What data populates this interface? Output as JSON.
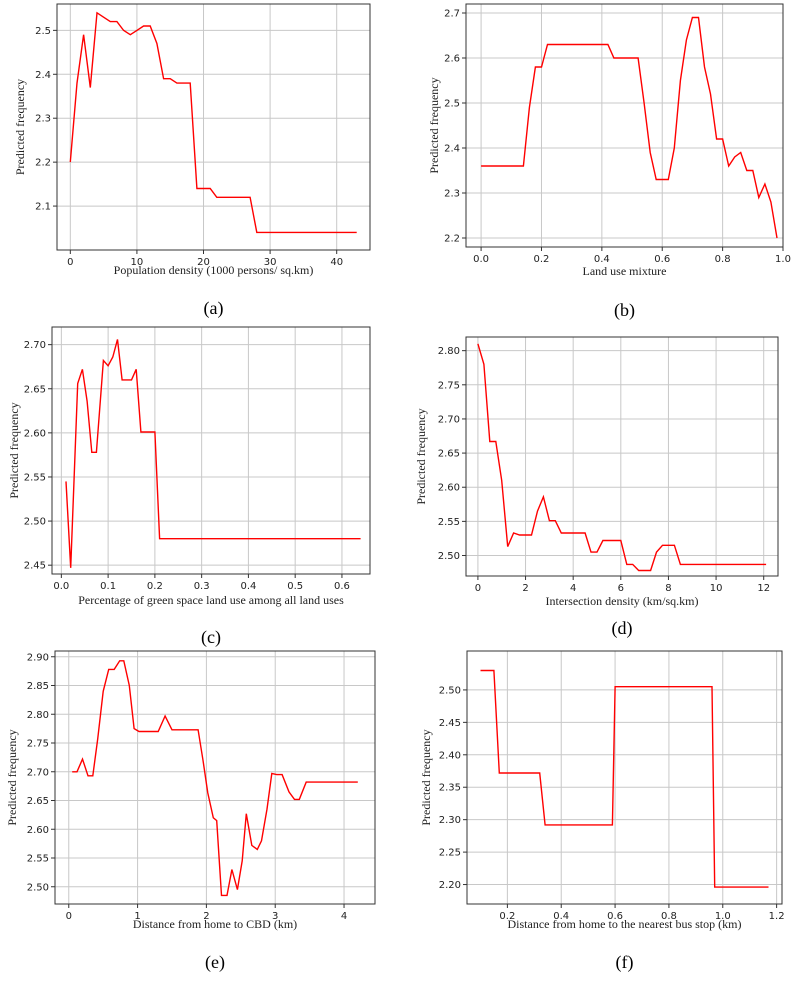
{
  "chart_data": [
    {
      "id": "a",
      "type": "line",
      "panel_label": "(a)",
      "xlabel": "Population density (1000 persons/ sq.km)",
      "ylabel": "Predicted frequency",
      "xlim": [
        -2,
        45
      ],
      "ylim": [
        2.0,
        2.56
      ],
      "xticks": [
        0,
        10,
        20,
        30,
        40
      ],
      "xtick_labels": [
        "0",
        "10",
        "20",
        "30",
        "40"
      ],
      "yticks": [
        2.1,
        2.2,
        2.3,
        2.4,
        2.5
      ],
      "ytick_labels": [
        "2.1",
        "2.2",
        "2.3",
        "2.4",
        "2.5"
      ],
      "x": [
        0,
        1,
        2,
        3,
        4,
        5,
        6,
        7,
        8,
        9,
        10,
        11,
        12,
        13,
        14,
        15,
        16,
        17,
        18,
        19,
        20,
        21,
        22,
        23,
        24,
        25,
        26,
        27,
        28,
        43
      ],
      "y": [
        2.2,
        2.38,
        2.49,
        2.37,
        2.54,
        2.53,
        2.52,
        2.52,
        2.5,
        2.49,
        2.5,
        2.51,
        2.51,
        2.47,
        2.39,
        2.39,
        2.38,
        2.38,
        2.38,
        2.14,
        2.14,
        2.14,
        2.12,
        2.12,
        2.12,
        2.12,
        2.12,
        2.12,
        2.04,
        2.04
      ]
    },
    {
      "id": "b",
      "type": "line",
      "panel_label": "(b)",
      "xlabel": "Land use mixture",
      "ylabel": "Predicted frequency",
      "xlim": [
        -0.05,
        1.0
      ],
      "ylim": [
        2.18,
        2.72
      ],
      "xticks": [
        0.0,
        0.2,
        0.4,
        0.6,
        0.8,
        1.0
      ],
      "xtick_labels": [
        "0.0",
        "0.2",
        "0.4",
        "0.6",
        "0.8",
        "1.0"
      ],
      "yticks": [
        2.2,
        2.3,
        2.4,
        2.5,
        2.6,
        2.7
      ],
      "ytick_labels": [
        "2.2",
        "2.3",
        "2.4",
        "2.5",
        "2.6",
        "2.7"
      ],
      "x": [
        0.0,
        0.14,
        0.16,
        0.18,
        0.2,
        0.22,
        0.42,
        0.44,
        0.52,
        0.54,
        0.56,
        0.58,
        0.6,
        0.62,
        0.64,
        0.66,
        0.68,
        0.7,
        0.72,
        0.74,
        0.76,
        0.78,
        0.8,
        0.82,
        0.84,
        0.86,
        0.88,
        0.9,
        0.92,
        0.94,
        0.96,
        0.98
      ],
      "y": [
        2.36,
        2.36,
        2.49,
        2.58,
        2.58,
        2.63,
        2.63,
        2.6,
        2.6,
        2.5,
        2.39,
        2.33,
        2.33,
        2.33,
        2.4,
        2.55,
        2.64,
        2.69,
        2.69,
        2.58,
        2.52,
        2.42,
        2.42,
        2.36,
        2.38,
        2.39,
        2.35,
        2.35,
        2.29,
        2.32,
        2.28,
        2.2
      ]
    },
    {
      "id": "c",
      "type": "line",
      "panel_label": "(c)",
      "xlabel": "Percentage of green space land use among all land uses",
      "ylabel": "Predicted frequency",
      "xlim": [
        -0.02,
        0.66
      ],
      "ylim": [
        2.44,
        2.72
      ],
      "xticks": [
        0.0,
        0.1,
        0.2,
        0.3,
        0.4,
        0.5,
        0.6
      ],
      "xtick_labels": [
        "0.0",
        "0.1",
        "0.2",
        "0.3",
        "0.4",
        "0.5",
        "0.6"
      ],
      "yticks": [
        2.45,
        2.5,
        2.55,
        2.6,
        2.65,
        2.7
      ],
      "ytick_labels": [
        "2.45",
        "2.50",
        "2.55",
        "2.60",
        "2.65",
        "2.70"
      ],
      "x": [
        0.01,
        0.02,
        0.035,
        0.045,
        0.055,
        0.065,
        0.075,
        0.09,
        0.1,
        0.11,
        0.12,
        0.13,
        0.14,
        0.15,
        0.16,
        0.17,
        0.18,
        0.19,
        0.2,
        0.21,
        0.22,
        0.64
      ],
      "y": [
        2.545,
        2.447,
        2.656,
        2.672,
        2.636,
        2.578,
        2.578,
        2.682,
        2.676,
        2.686,
        2.706,
        2.66,
        2.66,
        2.66,
        2.672,
        2.601,
        2.601,
        2.601,
        2.601,
        2.48,
        2.48,
        2.48
      ]
    },
    {
      "id": "d",
      "type": "line",
      "panel_label": "(d)",
      "xlabel": "Intersection density (km/sq.km)",
      "ylabel": "Predicted frequency",
      "xlim": [
        -0.5,
        12.6
      ],
      "ylim": [
        2.47,
        2.82
      ],
      "xticks": [
        0,
        2,
        4,
        6,
        8,
        10,
        12
      ],
      "xtick_labels": [
        "0",
        "2",
        "4",
        "6",
        "8",
        "10",
        "12"
      ],
      "yticks": [
        2.5,
        2.55,
        2.6,
        2.65,
        2.7,
        2.75,
        2.8
      ],
      "ytick_labels": [
        "2.50",
        "2.55",
        "2.60",
        "2.65",
        "2.70",
        "2.75",
        "2.80"
      ],
      "x": [
        0.0,
        0.25,
        0.5,
        0.75,
        1.0,
        1.25,
        1.5,
        1.75,
        2.0,
        2.25,
        2.5,
        2.75,
        3.0,
        3.25,
        3.5,
        3.75,
        4.0,
        4.25,
        4.5,
        4.75,
        5.0,
        5.25,
        5.5,
        5.75,
        6.0,
        6.25,
        6.5,
        6.75,
        7.0,
        7.25,
        7.5,
        7.75,
        8.0,
        8.25,
        8.5,
        12.1
      ],
      "y": [
        2.81,
        2.78,
        2.667,
        2.667,
        2.61,
        2.513,
        2.533,
        2.53,
        2.53,
        2.53,
        2.565,
        2.586,
        2.551,
        2.551,
        2.533,
        2.533,
        2.533,
        2.533,
        2.533,
        2.505,
        2.505,
        2.522,
        2.522,
        2.522,
        2.522,
        2.487,
        2.487,
        2.478,
        2.478,
        2.478,
        2.505,
        2.515,
        2.515,
        2.515,
        2.487,
        2.487
      ]
    },
    {
      "id": "e",
      "type": "line",
      "panel_label": "(e)",
      "xlabel": "Distance from home to CBD (km)",
      "ylabel": "Predicted frequency",
      "xlim": [
        -0.2,
        4.45
      ],
      "ylim": [
        2.47,
        2.91
      ],
      "xticks": [
        0,
        1,
        2,
        3,
        4
      ],
      "xtick_labels": [
        "0",
        "1",
        "2",
        "3",
        "4"
      ],
      "yticks": [
        2.5,
        2.55,
        2.6,
        2.65,
        2.7,
        2.75,
        2.8,
        2.85,
        2.9
      ],
      "ytick_labels": [
        "2.50",
        "2.55",
        "2.60",
        "2.65",
        "2.70",
        "2.75",
        "2.80",
        "2.85",
        "2.90"
      ],
      "x": [
        0.05,
        0.12,
        0.2,
        0.28,
        0.35,
        0.42,
        0.5,
        0.58,
        0.66,
        0.74,
        0.8,
        0.88,
        0.95,
        1.02,
        1.1,
        1.2,
        1.3,
        1.4,
        1.5,
        1.6,
        1.7,
        1.8,
        1.88,
        1.95,
        2.02,
        2.1,
        2.15,
        2.22,
        2.3,
        2.37,
        2.45,
        2.52,
        2.58,
        2.66,
        2.74,
        2.8,
        2.88,
        2.95,
        3.02,
        3.1,
        3.2,
        3.28,
        3.35,
        3.45,
        3.55,
        3.6,
        4.2
      ],
      "y": [
        2.7,
        2.7,
        2.722,
        2.693,
        2.693,
        2.757,
        2.84,
        2.878,
        2.878,
        2.893,
        2.893,
        2.85,
        2.775,
        2.77,
        2.77,
        2.77,
        2.77,
        2.797,
        2.773,
        2.773,
        2.773,
        2.773,
        2.773,
        2.72,
        2.663,
        2.62,
        2.615,
        2.485,
        2.485,
        2.53,
        2.495,
        2.545,
        2.627,
        2.572,
        2.565,
        2.58,
        2.635,
        2.697,
        2.695,
        2.695,
        2.665,
        2.652,
        2.652,
        2.682,
        2.682,
        2.682,
        2.682
      ]
    },
    {
      "id": "f",
      "type": "line",
      "panel_label": "(f)",
      "xlabel": "Distance from home to the nearest bus stop (km)",
      "ylabel": "Predicted frequency",
      "xlim": [
        0.05,
        1.22
      ],
      "ylim": [
        2.17,
        2.56
      ],
      "xticks": [
        0.2,
        0.4,
        0.6,
        0.8,
        1.0,
        1.2
      ],
      "xtick_labels": [
        "0.2",
        "0.4",
        "0.6",
        "0.8",
        "1.0",
        "1.2"
      ],
      "yticks": [
        2.2,
        2.25,
        2.3,
        2.35,
        2.4,
        2.45,
        2.5
      ],
      "ytick_labels": [
        "2.20",
        "2.25",
        "2.30",
        "2.35",
        "2.40",
        "2.45",
        "2.50"
      ],
      "x": [
        0.1,
        0.15,
        0.17,
        0.32,
        0.34,
        0.59,
        0.6,
        0.96,
        0.97,
        1.17
      ],
      "y": [
        2.53,
        2.53,
        2.372,
        2.372,
        2.292,
        2.292,
        2.505,
        2.505,
        2.196,
        2.196
      ]
    }
  ]
}
